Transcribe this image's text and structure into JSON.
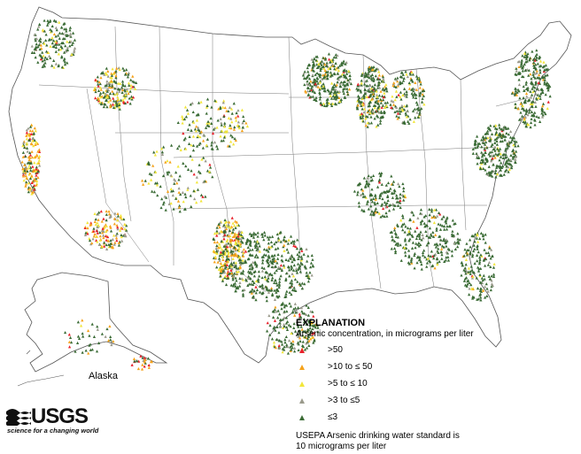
{
  "map": {
    "region": "United States",
    "inset_label": "Alaska"
  },
  "legend": {
    "title": "EXPLANATION",
    "subtitle": "Arsenic concentration, in micrograms per liter",
    "classes": [
      {
        "id": "gt50",
        "label": ">50",
        "color": "#e8202a"
      },
      {
        "id": "gt10",
        "label": ">10 to ≤ 50",
        "color": "#f5a21b"
      },
      {
        "id": "gt5",
        "label": ">5 to ≤ 10",
        "color": "#f2e63a"
      },
      {
        "id": "gt3",
        "label": ">3 to ≤5",
        "color": "#9a9a8c"
      },
      {
        "id": "le3",
        "label": "≤3",
        "color": "#3a6b35"
      }
    ],
    "note": "USEPA Arsenic drinking water standard is 10 micrograms per liter"
  },
  "logo": {
    "wordmark": "USGS",
    "tagline": "science for a changing world"
  },
  "colors": {
    "background": "#ffffff",
    "boundary": "#555555"
  }
}
